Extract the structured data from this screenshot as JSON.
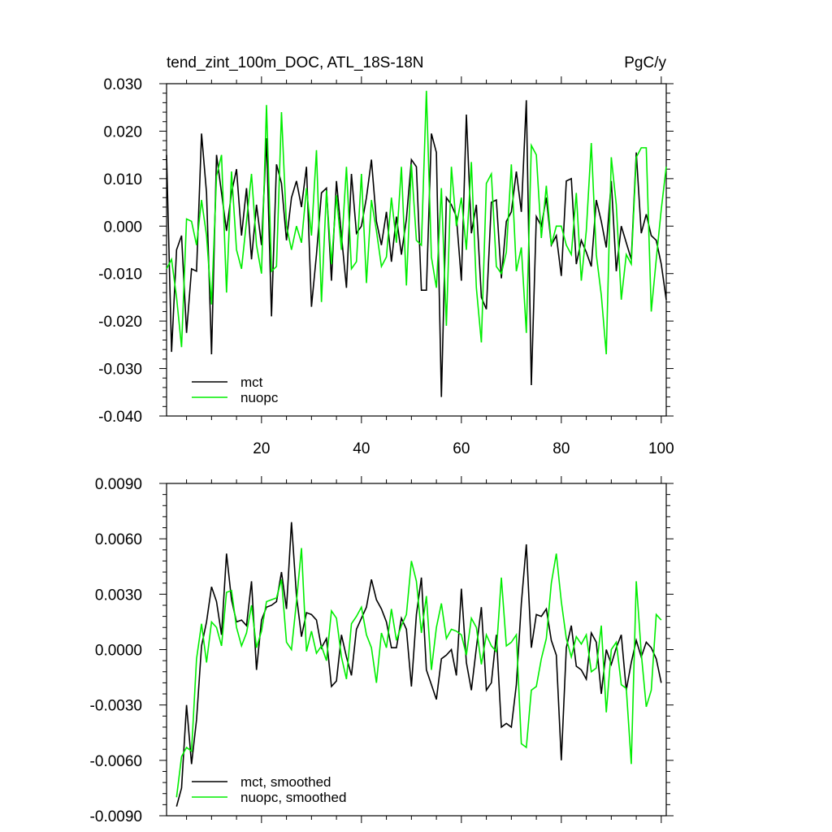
{
  "chart_data": [
    {
      "type": "line",
      "title": "tend_zint_100m_DOC, ATL_18S-18N",
      "units": "PgC/y",
      "xlabel": "",
      "ylabel": "",
      "xlim": [
        1,
        101
      ],
      "ylim": [
        -0.04,
        0.03
      ],
      "y_ticks": [
        0.03,
        0.02,
        0.01,
        0.0,
        -0.01,
        -0.02,
        -0.03,
        -0.04
      ],
      "y_tick_labels": [
        "0.030",
        "0.020",
        "0.010",
        "0.000",
        "-0.010",
        "-0.020",
        "-0.030",
        "-0.040"
      ],
      "x_ticks": [
        20,
        40,
        60,
        80,
        100
      ],
      "x_tick_labels": [
        "20",
        "40",
        "60",
        "80",
        "100"
      ],
      "grid": false,
      "legend_position": "bottom-left",
      "series": [
        {
          "name": "mct",
          "color": "#000000",
          "values": [
            0.015,
            -0.0265,
            -0.005,
            -0.002,
            -0.0225,
            -0.009,
            -0.0095,
            0.0195,
            0.007,
            -0.027,
            0.015,
            0.007,
            -0.001,
            0.007,
            0.012,
            -0.002,
            0.008,
            -0.007,
            0.0045,
            -0.004,
            0.0185,
            -0.019,
            0.013,
            0.009,
            -0.003,
            0.006,
            0.0095,
            0.004,
            0.0125,
            -0.017,
            -0.006,
            0.007,
            0.008,
            -0.0115,
            0.0095,
            -0.002,
            -0.013,
            0.011,
            -0.0015,
            0.0,
            0.006,
            0.014,
            0.001,
            -0.004,
            0.003,
            -0.0075,
            0.002,
            -0.006,
            0.0015,
            0.014,
            0.0125,
            -0.0135,
            -0.0135,
            0.0195,
            0.0155,
            -0.036,
            0.006,
            0.0045,
            0.002,
            -0.0115,
            0.0235,
            -0.0015,
            0.0045,
            -0.015,
            -0.0175,
            0.005,
            0.0055,
            -0.011,
            0.001,
            0.003,
            0.0115,
            0.003,
            0.0265,
            -0.0335,
            0.002,
            0.0,
            0.006,
            -0.004,
            -0.002,
            -0.0105,
            0.0095,
            0.01,
            -0.008,
            -0.003,
            -0.0055,
            -0.0085,
            0.0055,
            0.001,
            -0.0045,
            0.0095,
            -0.0095,
            0.0,
            -0.0035,
            -0.007,
            0.0155,
            -0.0015,
            0.0025,
            -0.002,
            -0.003,
            -0.008,
            -0.0155
          ]
        },
        {
          "name": "nuopc",
          "color": "#00ee00",
          "values": [
            -0.009,
            -0.007,
            -0.015,
            -0.0255,
            0.0015,
            0.001,
            -0.004,
            0.0055,
            -0.002,
            -0.0165,
            0.0105,
            0.015,
            -0.014,
            0.0115,
            -0.005,
            -0.009,
            0.001,
            0.011,
            -0.004,
            -0.01,
            0.0255,
            -0.0095,
            -0.0085,
            0.024,
            0.0,
            -0.005,
            0.0,
            -0.0035,
            0.008,
            -0.002,
            0.016,
            -0.016,
            0.0075,
            -0.008,
            0.0065,
            -0.005,
            0.0125,
            -0.009,
            -0.0075,
            0.011,
            -0.012,
            0.0055,
            -0.001,
            -0.0085,
            -0.0065,
            0.006,
            -0.0035,
            0.0125,
            -0.0125,
            0.013,
            -0.003,
            -0.004,
            0.0285,
            -0.0065,
            -0.013,
            0.008,
            -0.021,
            0.0125,
            0.0,
            0.006,
            -0.005,
            0.0135,
            -0.013,
            -0.0245,
            0.009,
            0.011,
            -0.0085,
            -0.01,
            -0.0055,
            0.013,
            -0.0095,
            -0.0045,
            -0.0225,
            0.017,
            0.015,
            -0.0025,
            0.0085,
            -0.004,
            0.0,
            0.0,
            -0.004,
            -0.006,
            0.007,
            -0.0115,
            -0.001,
            0.0175,
            -0.006,
            -0.0145,
            -0.027,
            0.0145,
            0.0045,
            -0.0155,
            -0.006,
            -0.008,
            0.0145,
            0.0165,
            0.0165,
            -0.018,
            -0.007,
            0.0035,
            0.0125
          ]
        }
      ]
    },
    {
      "type": "line",
      "title": "",
      "xlabel": "",
      "ylabel": "",
      "xlim": [
        1,
        101
      ],
      "ylim": [
        -0.009,
        0.009
      ],
      "y_ticks": [
        0.009,
        0.006,
        0.003,
        0.0,
        -0.003,
        -0.006,
        -0.009
      ],
      "y_tick_labels": [
        "0.0090",
        "0.0060",
        "0.0030",
        "0.0000",
        "-0.0030",
        "-0.0060",
        "-0.0090"
      ],
      "x_ticks": [
        20,
        40,
        60,
        80,
        100
      ],
      "x_tick_labels": [],
      "grid": false,
      "legend_position": "bottom-left",
      "series": [
        {
          "name": "mct, smoothed",
          "color": "#000000",
          "x_start": 3,
          "values": [
            -0.0085,
            -0.0075,
            -0.003,
            -0.0062,
            -0.0038,
            0.0002,
            0.0015,
            0.0034,
            0.0026,
            0.0008,
            0.0052,
            0.0027,
            0.0015,
            0.0016,
            0.0013,
            0.0037,
            -0.0011,
            0.0016,
            0.0023,
            0.0024,
            0.0026,
            0.0042,
            0.0022,
            0.0069,
            0.0029,
            0.0007,
            0.002,
            0.0019,
            0.0016,
            0.0001,
            0.0006,
            -0.002,
            -0.0017,
            0.0008,
            -0.0004,
            -0.0014,
            0.0011,
            0.0017,
            0.0023,
            0.0038,
            0.0027,
            0.0022,
            0.0015,
            0.0001,
            0.0001,
            0.0017,
            0.0011,
            -0.002,
            0.0019,
            0.0039,
            -0.0011,
            -0.0019,
            -0.0027,
            -0.0005,
            -0.0003,
            0.0,
            -0.0014,
            0.0033,
            -0.0007,
            -0.0022,
            0.0001,
            0.0023,
            -0.0022,
            -0.0018,
            0.0008,
            -0.0042,
            -0.004,
            -0.0042,
            -0.0019,
            0.0025,
            0.0057,
            0.0001,
            0.0019,
            0.0018,
            0.0022,
            0.0005,
            -0.0003,
            -0.006,
            0.0001,
            0.0013,
            -0.0009,
            -0.0011,
            -0.0016,
            0.0009,
            0.0004,
            -0.0024,
            0.0,
            -0.0008,
            0.0001,
            0.0008,
            -0.0022,
            -0.0007,
            0.0005,
            -0.0004,
            0.0004,
            0.0001,
            -0.0005,
            -0.0018
          ]
        },
        {
          "name": "nuopc, smoothed",
          "color": "#00ee00",
          "x_start": 3,
          "values": [
            -0.008,
            -0.0058,
            -0.0053,
            -0.0055,
            -0.0005,
            0.0014,
            -0.0007,
            0.0015,
            0.0012,
            0.0002,
            0.0031,
            0.0032,
            0.0012,
            0.0002,
            0.0009,
            0.0024,
            0.0001,
            0.001,
            0.0026,
            0.0027,
            0.0028,
            0.0038,
            0.0004,
            0.0,
            0.0026,
            0.0055,
            -0.0001,
            0.001,
            -0.0002,
            0.0002,
            -0.0006,
            0.0021,
            0.0017,
            -0.0004,
            -0.0016,
            0.0014,
            0.0018,
            0.0023,
            0.0008,
            0.0001,
            -0.0018,
            0.0009,
            0.0001,
            0.0022,
            0.0005,
            0.0013,
            0.0019,
            0.0048,
            0.0037,
            0.0009,
            0.0029,
            -0.0011,
            0.0012,
            0.0025,
            0.0006,
            0.0011,
            0.001,
            0.0008,
            -0.0003,
            0.0017,
            0.0012,
            -0.0008,
            0.0008,
            0.0002,
            -0.0001,
            0.0039,
            0.0002,
            0.0004,
            0.0008,
            -0.0051,
            -0.0053,
            -0.0022,
            -0.002,
            -0.0005,
            0.0006,
            0.0036,
            0.0052,
            0.0026,
            0.0006,
            -0.0004,
            0.0007,
            0.0003,
            0.0008,
            -0.0012,
            -0.001,
            0.0013,
            -0.0034,
            0.0,
            0.0004,
            -0.0019,
            -0.0021,
            -0.0062,
            0.0037,
            -0.0002,
            -0.0031,
            -0.0022,
            0.0019,
            0.0016
          ]
        }
      ]
    }
  ]
}
